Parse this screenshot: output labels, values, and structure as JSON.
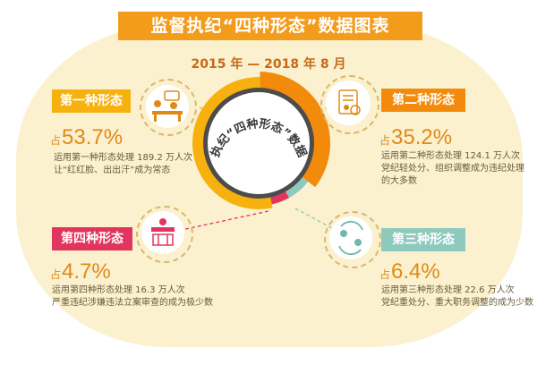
{
  "header": {
    "title": "监督执纪“四种形态”数据图表",
    "period": "2015 年 — 2018 年 8 月"
  },
  "center_label": "监督执纪“四种形态”数据统计",
  "colors": {
    "form1": "#f6b10f",
    "form2": "#f28b0c",
    "form3": "#8ec9be",
    "form4": "#e2355e",
    "banner": "#f39c1c"
  },
  "forms": {
    "f1": {
      "label": "第一种形态",
      "pct_prefix": "占",
      "pct": "53.7%",
      "desc_line1": "运用第一种形态处理 189.2 万人次",
      "desc_line2": "让“红红脸、出出汗”成为常态",
      "icon": "meeting-icon"
    },
    "f2": {
      "label": "第二种形态",
      "pct_prefix": "占",
      "pct": "35.2%",
      "desc_line1": "运用第二种形态处理 124.1 万人次",
      "desc_line2": "党纪轻处分、组织调整成为违纪处理",
      "desc_line3": "的大多数",
      "icon": "document-person-icon"
    },
    "f3": {
      "label": "第三种形态",
      "pct_prefix": "占",
      "pct": "6.4%",
      "desc_line1": "运用第三种形态处理 22.6 万人次",
      "desc_line2": "党纪重处分、重大职务调整的成为少数",
      "icon": "exchange-people-icon"
    },
    "f4": {
      "label": "第四种形态",
      "pct_prefix": "占",
      "pct": "4.7%",
      "desc_line1": "运用第四种形态处理 16.3 万人次",
      "desc_line2": "严重违纪涉嫌违法立案审查的成为极少数",
      "icon": "courtroom-icon"
    }
  },
  "chart_data": {
    "type": "pie",
    "title": "监督执纪“四种形态”数据统计",
    "categories": [
      "第一种形态",
      "第二种形态",
      "第三种形态",
      "第四种形态"
    ],
    "values": [
      53.7,
      35.2,
      6.4,
      4.7
    ],
    "unit": "%",
    "colors": [
      "#f6b10f",
      "#f28b0c",
      "#8ec9be",
      "#e2355e"
    ]
  }
}
